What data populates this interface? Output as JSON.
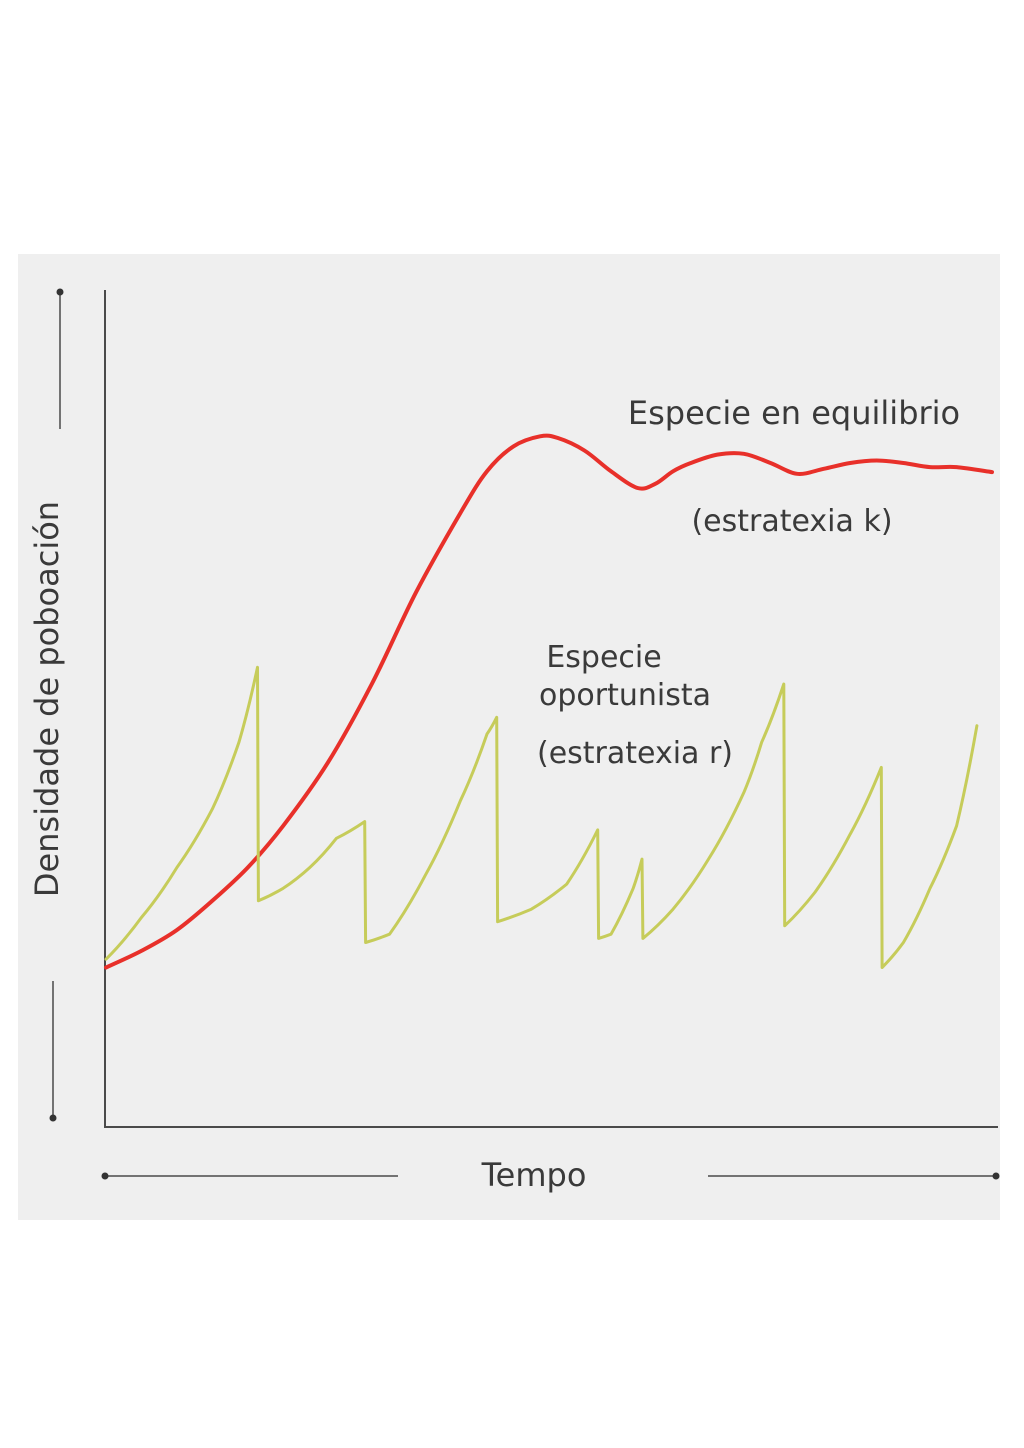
{
  "chart_data": {
    "type": "line",
    "title": "",
    "xlabel": "Tempo",
    "ylabel": "Densidade de poboación",
    "xlim": [
      0,
      100
    ],
    "ylim": [
      0,
      100
    ],
    "grid": false,
    "axis_ticks": false,
    "series": [
      {
        "name": "Especie en equilibrio",
        "name_line2": "(estratexia k)",
        "color": "#e8302a",
        "x": [
          0,
          4,
          8,
          12,
          16,
          20,
          25,
          30,
          35,
          40,
          43,
          46,
          49,
          51,
          54,
          57,
          60,
          62,
          64,
          66,
          69,
          72,
          75,
          78,
          81,
          84,
          87,
          90,
          93,
          96,
          100
        ],
        "y": [
          19,
          21,
          23.5,
          27,
          31,
          36,
          43.5,
          53,
          64,
          73.5,
          78.5,
          81.5,
          82.7,
          82.5,
          81,
          78.5,
          76.5,
          77,
          78.5,
          79.5,
          80.5,
          80.6,
          79.5,
          78.2,
          78.8,
          79.5,
          79.8,
          79.5,
          79,
          79,
          78.4
        ]
      },
      {
        "name": "Especie",
        "name_line2": "oportunista",
        "name_line3": "(estratexia r)",
        "color": "#c6cc5a",
        "x": [
          0,
          4,
          8,
          12,
          15,
          17.1,
          17.2,
          20,
          23,
          26,
          29.2,
          29.3,
          32,
          36,
          40,
          43,
          44.1,
          44.2,
          48,
          52,
          55.5,
          55.6,
          57,
          59.5,
          60.5,
          60.6,
          64,
          68,
          72,
          74,
          76.5,
          76.6,
          80,
          84,
          87.5,
          87.6,
          90,
          93,
          96,
          98.3
        ],
        "y": [
          20,
          25,
          31,
          38,
          46,
          55,
          27,
          28.5,
          31,
          34.5,
          36.5,
          22,
          23,
          30,
          39,
          47,
          49,
          24.5,
          26,
          29,
          35.5,
          22.5,
          23,
          28.5,
          32,
          22.5,
          26,
          32,
          40,
          46,
          53,
          24,
          28,
          35,
          43,
          19,
          22,
          28.5,
          36,
          48
        ]
      }
    ]
  }
}
